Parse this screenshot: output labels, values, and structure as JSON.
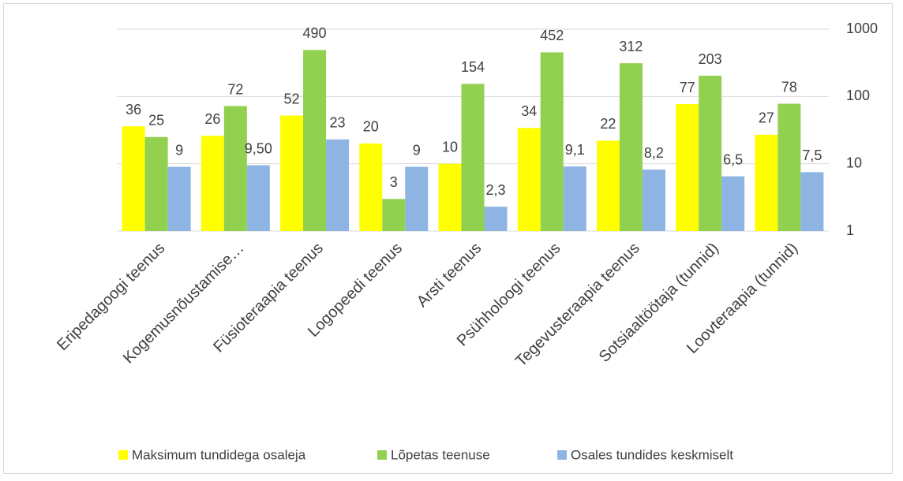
{
  "chart_data": {
    "type": "bar",
    "categories": [
      "Eripedagoogi teenus",
      "Kogemusnõustamise…",
      "Füsioteraapia teenus",
      "Logopeedi teenus",
      "Arsti teenus",
      "Psühholoogi teenus",
      "Tegevusteraapia teenus",
      "Sotsiaaltöötaja (tunnid)",
      "Loovteraapia (tunnid)"
    ],
    "series": [
      {
        "name": "Maksimum tundidega osaleja",
        "color": "#ffff00",
        "values": [
          36,
          26,
          52,
          20,
          10,
          34,
          22,
          77,
          27
        ]
      },
      {
        "name": "Lõpetas teenuse",
        "color": "#92d050",
        "values": [
          25,
          72,
          490,
          3,
          154,
          452,
          312,
          203,
          78
        ]
      },
      {
        "name": "Osales tundides keskmiselt",
        "color": "#8eb4e3",
        "values": [
          9,
          9.5,
          23,
          9,
          2.3,
          9.1,
          8.2,
          6.5,
          7.5
        ],
        "value_labels": [
          "9",
          "9,50",
          "23",
          "9",
          "2,3",
          "9,1",
          "8,2",
          "6,5",
          "7,5"
        ]
      }
    ],
    "ylim": [
      1,
      1000
    ],
    "yticks": [
      1,
      10,
      100,
      1000
    ],
    "log_scale": true,
    "y_axis_side": "right",
    "grid": true,
    "legend": "bottom"
  }
}
